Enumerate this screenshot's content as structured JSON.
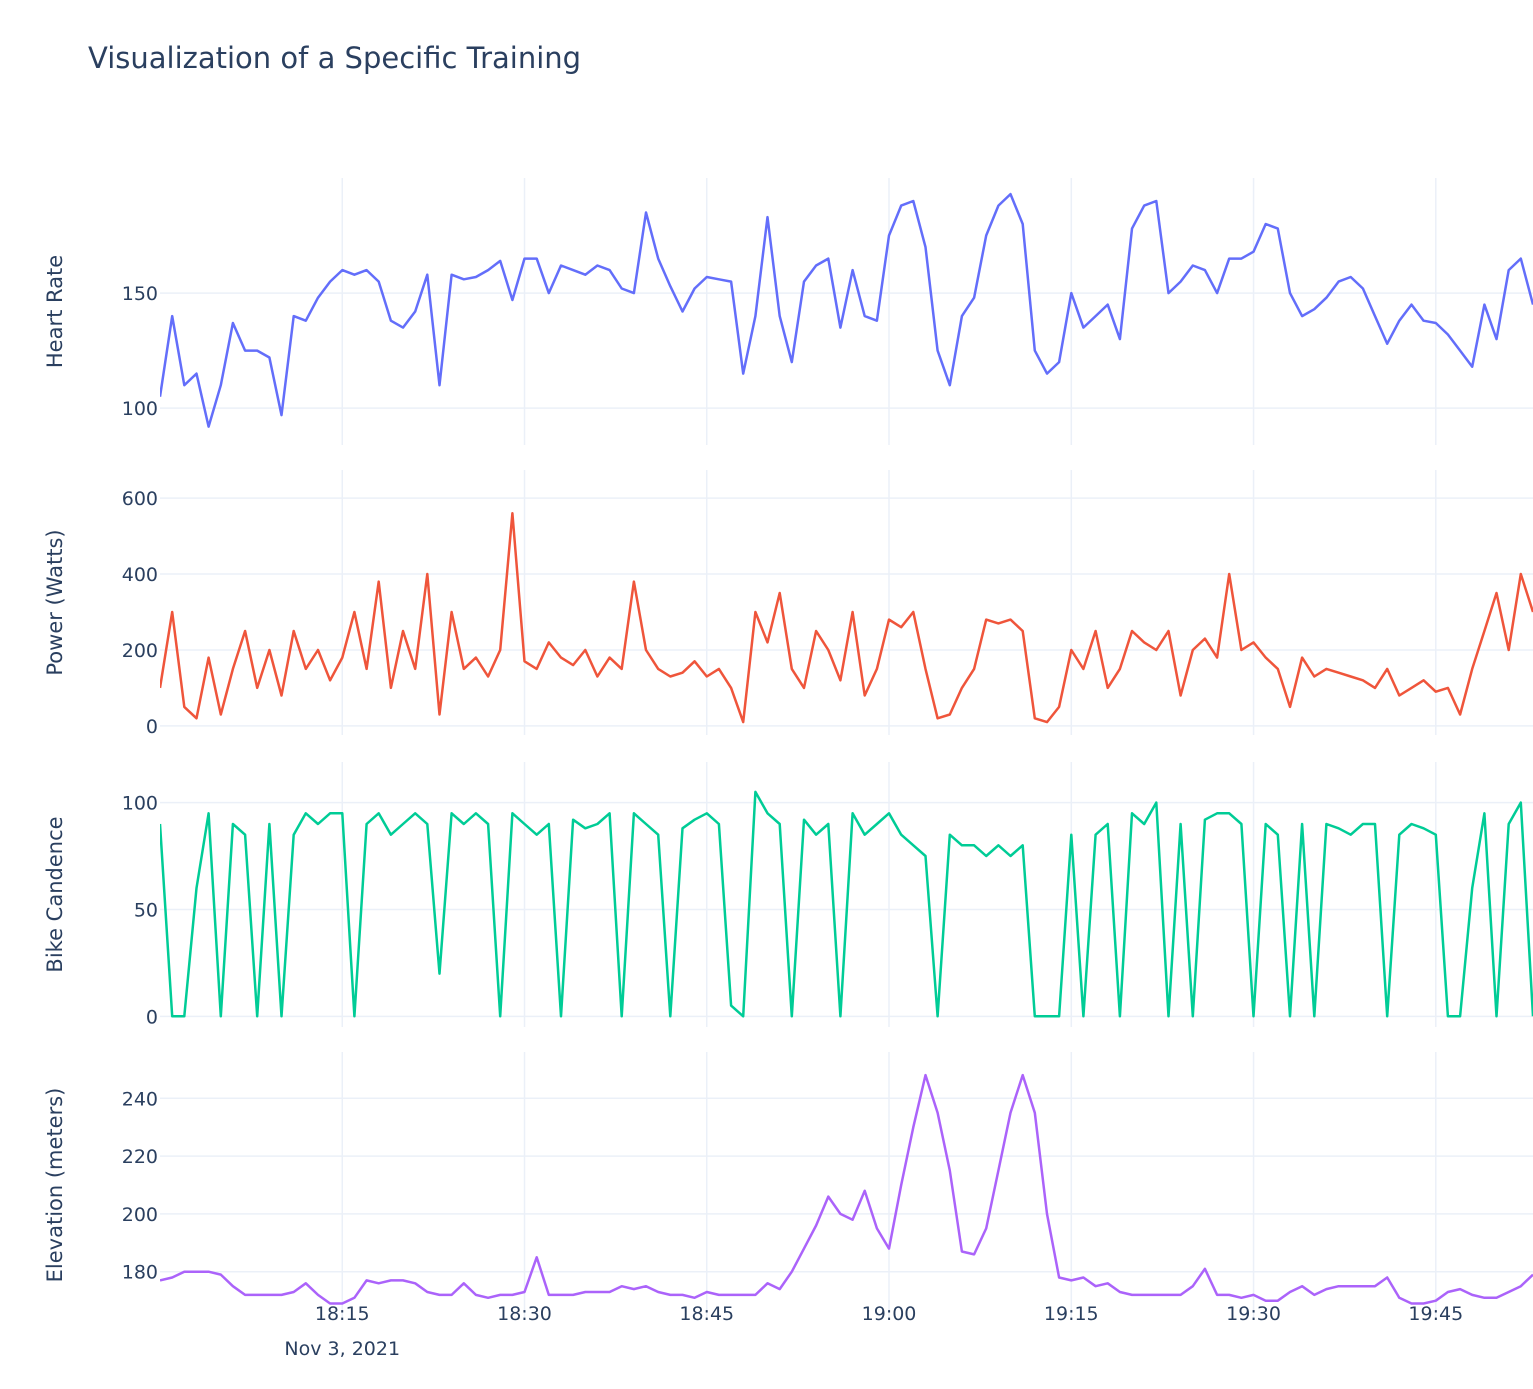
{
  "title": "Visualization of a Specific Training",
  "xlim": [
    "2021-11-03 18:00",
    "2021-11-03 19:53"
  ],
  "xticks": [
    {
      "value": "2021-11-03 18:15",
      "label": "18:15",
      "sublabel": "Nov 3, 2021"
    },
    {
      "value": "2021-11-03 18:30",
      "label": "18:30"
    },
    {
      "value": "2021-11-03 18:45",
      "label": "18:45"
    },
    {
      "value": "2021-11-03 19:00",
      "label": "19:00"
    },
    {
      "value": "2021-11-03 19:15",
      "label": "19:15"
    },
    {
      "value": "2021-11-03 19:30",
      "label": "19:30"
    },
    {
      "value": "2021-11-03 19:45",
      "label": "19:45"
    }
  ],
  "x": [
    "2021-11-03 18:00",
    "2021-11-03 18:01",
    "2021-11-03 18:02",
    "2021-11-03 18:03",
    "2021-11-03 18:04",
    "2021-11-03 18:05",
    "2021-11-03 18:06",
    "2021-11-03 18:07",
    "2021-11-03 18:08",
    "2021-11-03 18:09",
    "2021-11-03 18:10",
    "2021-11-03 18:11",
    "2021-11-03 18:12",
    "2021-11-03 18:13",
    "2021-11-03 18:14",
    "2021-11-03 18:15",
    "2021-11-03 18:16",
    "2021-11-03 18:17",
    "2021-11-03 18:18",
    "2021-11-03 18:19",
    "2021-11-03 18:20",
    "2021-11-03 18:21",
    "2021-11-03 18:22",
    "2021-11-03 18:23",
    "2021-11-03 18:24",
    "2021-11-03 18:25",
    "2021-11-03 18:26",
    "2021-11-03 18:27",
    "2021-11-03 18:28",
    "2021-11-03 18:29",
    "2021-11-03 18:30",
    "2021-11-03 18:31",
    "2021-11-03 18:32",
    "2021-11-03 18:33",
    "2021-11-03 18:34",
    "2021-11-03 18:35",
    "2021-11-03 18:36",
    "2021-11-03 18:37",
    "2021-11-03 18:38",
    "2021-11-03 18:39",
    "2021-11-03 18:40",
    "2021-11-03 18:41",
    "2021-11-03 18:42",
    "2021-11-03 18:43",
    "2021-11-03 18:44",
    "2021-11-03 18:45",
    "2021-11-03 18:46",
    "2021-11-03 18:47",
    "2021-11-03 18:48",
    "2021-11-03 18:49",
    "2021-11-03 18:50",
    "2021-11-03 18:51",
    "2021-11-03 18:52",
    "2021-11-03 18:53",
    "2021-11-03 18:54",
    "2021-11-03 18:55",
    "2021-11-03 18:56",
    "2021-11-03 18:57",
    "2021-11-03 18:58",
    "2021-11-03 18:59",
    "2021-11-03 19:00",
    "2021-11-03 19:01",
    "2021-11-03 19:02",
    "2021-11-03 19:03",
    "2021-11-03 19:04",
    "2021-11-03 19:05",
    "2021-11-03 19:06",
    "2021-11-03 19:07",
    "2021-11-03 19:08",
    "2021-11-03 19:09",
    "2021-11-03 19:10",
    "2021-11-03 19:11",
    "2021-11-03 19:12",
    "2021-11-03 19:13",
    "2021-11-03 19:14",
    "2021-11-03 19:15",
    "2021-11-03 19:16",
    "2021-11-03 19:17",
    "2021-11-03 19:18",
    "2021-11-03 19:19",
    "2021-11-03 19:20",
    "2021-11-03 19:21",
    "2021-11-03 19:22",
    "2021-11-03 19:23",
    "2021-11-03 19:24",
    "2021-11-03 19:25",
    "2021-11-03 19:26",
    "2021-11-03 19:27",
    "2021-11-03 19:28",
    "2021-11-03 19:29",
    "2021-11-03 19:30",
    "2021-11-03 19:31",
    "2021-11-03 19:32",
    "2021-11-03 19:33",
    "2021-11-03 19:34",
    "2021-11-03 19:35",
    "2021-11-03 19:36",
    "2021-11-03 19:37",
    "2021-11-03 19:38",
    "2021-11-03 19:39",
    "2021-11-03 19:40",
    "2021-11-03 19:41",
    "2021-11-03 19:42",
    "2021-11-03 19:43",
    "2021-11-03 19:44",
    "2021-11-03 19:45",
    "2021-11-03 19:46",
    "2021-11-03 19:47",
    "2021-11-03 19:48",
    "2021-11-03 19:49",
    "2021-11-03 19:50",
    "2021-11-03 19:51",
    "2021-11-03 19:52",
    "2021-11-03 19:53"
  ],
  "chart_data": [
    {
      "type": "line",
      "ylabel": "Heart Rate",
      "color": "#636efa",
      "ylim": [
        84,
        200
      ],
      "yticks": [
        100,
        150
      ],
      "grid": true,
      "values": [
        105,
        140,
        110,
        115,
        92,
        110,
        137,
        125,
        125,
        122,
        97,
        140,
        138,
        148,
        155,
        160,
        158,
        160,
        155,
        138,
        135,
        142,
        158,
        110,
        158,
        156,
        157,
        160,
        164,
        147,
        165,
        165,
        150,
        162,
        160,
        158,
        162,
        160,
        152,
        150,
        185,
        165,
        153,
        142,
        152,
        157,
        156,
        155,
        115,
        140,
        183,
        140,
        120,
        155,
        162,
        165,
        135,
        160,
        140,
        138,
        175,
        188,
        190,
        170,
        125,
        110,
        140,
        148,
        175,
        188,
        193,
        180,
        125,
        115,
        120,
        150,
        135,
        140,
        145,
        130,
        178,
        188,
        190,
        150,
        155,
        162,
        160,
        150,
        165,
        165,
        168,
        180,
        178,
        150,
        140,
        143,
        148,
        155,
        157,
        152,
        140,
        128,
        138,
        145,
        138,
        137,
        132,
        125,
        118,
        145,
        130,
        160,
        165,
        145
      ]
    },
    {
      "type": "line",
      "ylabel": "Power (Watts)",
      "color": "#ef553b",
      "ylim": [
        -24,
        674
      ],
      "yticks": [
        0,
        200,
        400,
        600
      ],
      "grid": true,
      "values": [
        100,
        300,
        50,
        20,
        180,
        30,
        150,
        250,
        100,
        200,
        80,
        250,
        150,
        200,
        120,
        180,
        300,
        150,
        380,
        100,
        250,
        150,
        400,
        30,
        300,
        150,
        180,
        130,
        200,
        560,
        170,
        150,
        220,
        180,
        160,
        200,
        130,
        180,
        150,
        380,
        200,
        150,
        130,
        140,
        170,
        130,
        150,
        100,
        10,
        300,
        220,
        350,
        150,
        100,
        250,
        200,
        120,
        300,
        80,
        150,
        280,
        260,
        300,
        150,
        20,
        30,
        100,
        150,
        280,
        270,
        280,
        250,
        20,
        10,
        50,
        200,
        150,
        250,
        100,
        150,
        250,
        220,
        200,
        250,
        80,
        200,
        230,
        180,
        400,
        200,
        220,
        180,
        150,
        50,
        180,
        130,
        150,
        140,
        130,
        120,
        100,
        150,
        80,
        100,
        120,
        90,
        100,
        30,
        150,
        250,
        350,
        200,
        400,
        300
      ]
    },
    {
      "type": "line",
      "ylabel": "Bike Candence",
      "color": "#00cc96",
      "ylim": [
        -5,
        119
      ],
      "yticks": [
        0,
        50,
        100
      ],
      "grid": true,
      "values": [
        90,
        0,
        0,
        60,
        95,
        0,
        90,
        85,
        0,
        90,
        0,
        85,
        95,
        90,
        95,
        95,
        0,
        90,
        95,
        85,
        90,
        95,
        90,
        20,
        95,
        90,
        95,
        90,
        0,
        95,
        90,
        85,
        90,
        0,
        92,
        88,
        90,
        95,
        0,
        95,
        90,
        85,
        0,
        88,
        92,
        95,
        90,
        5,
        0,
        105,
        95,
        90,
        0,
        92,
        85,
        90,
        0,
        95,
        85,
        90,
        95,
        85,
        80,
        75,
        0,
        85,
        80,
        80,
        75,
        80,
        75,
        80,
        0,
        0,
        0,
        85,
        0,
        85,
        90,
        0,
        95,
        90,
        100,
        0,
        90,
        0,
        92,
        95,
        95,
        90,
        0,
        90,
        85,
        0,
        90,
        0,
        90,
        88,
        85,
        90,
        90,
        0,
        85,
        90,
        88,
        85,
        0,
        0,
        60,
        95,
        0,
        90,
        100,
        0
      ]
    },
    {
      "type": "line",
      "ylabel": "Elevation (meters)",
      "color": "#ab63fa",
      "ylim": [
        164,
        256
      ],
      "yticks": [
        180,
        200,
        220,
        240
      ],
      "grid": true,
      "values": [
        177,
        178,
        180,
        180,
        180,
        179,
        175,
        172,
        172,
        172,
        172,
        173,
        176,
        172,
        169,
        169,
        171,
        177,
        176,
        177,
        177,
        176,
        173,
        172,
        172,
        176,
        172,
        171,
        172,
        172,
        173,
        185,
        172,
        172,
        172,
        173,
        173,
        173,
        175,
        174,
        175,
        173,
        172,
        172,
        171,
        173,
        172,
        172,
        172,
        172,
        176,
        174,
        180,
        188,
        196,
        206,
        200,
        198,
        208,
        195,
        188,
        210,
        230,
        248,
        235,
        215,
        187,
        186,
        195,
        215,
        235,
        248,
        235,
        200,
        178,
        177,
        178,
        175,
        176,
        173,
        172,
        172,
        172,
        172,
        172,
        175,
        181,
        172,
        172,
        171,
        172,
        170,
        170,
        173,
        175,
        172,
        174,
        175,
        175,
        175,
        175,
        178,
        171,
        169,
        169,
        170,
        173,
        174,
        172,
        171,
        171,
        173,
        175,
        179
      ]
    }
  ]
}
